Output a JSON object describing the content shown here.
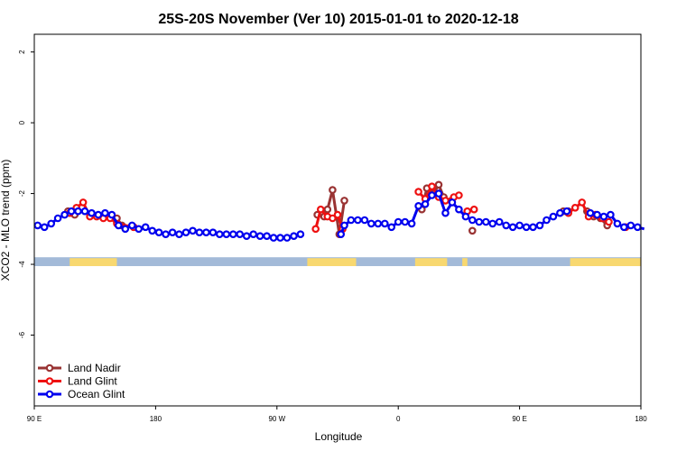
{
  "chart_data": {
    "type": "line",
    "title": "25S-20S November (Ver 10)   2015-01-01 to 2020-12-18",
    "xlabel": "Longitude",
    "ylabel": "XCO2 - MLO trend (ppm)",
    "xlim": [
      90,
      450
    ],
    "ylim": [
      -8,
      2.5
    ],
    "x_ticks": [
      {
        "value": 90,
        "label": "90 E"
      },
      {
        "value": 162,
        "label": "180"
      },
      {
        "value": 234,
        "label": "90 W"
      },
      {
        "value": 306,
        "label": "0"
      },
      {
        "value": 378,
        "label": "90 E"
      },
      {
        "value": 450,
        "label": "180"
      }
    ],
    "y_ticks": [
      {
        "value": 2,
        "label": "2"
      },
      {
        "value": 0,
        "label": "0"
      },
      {
        "value": -2,
        "label": "-2"
      },
      {
        "value": -4,
        "label": "-4"
      },
      {
        "value": -6,
        "label": "-6"
      }
    ],
    "grid": false,
    "legend_position": "bottom-left",
    "surface_band": {
      "y_top": -3.8,
      "y_bottom": -4.05,
      "ocean_color": "#a3bad8",
      "land_color": "#f8d870",
      "land_segments": [
        [
          111,
          139
        ],
        [
          252,
          281
        ],
        [
          316,
          335
        ],
        [
          344,
          347
        ],
        [
          408,
          453
        ]
      ]
    },
    "series": [
      {
        "name": "Land Nadir",
        "color": "#993333",
        "segments": [
          [
            [
              110,
              -2.5
            ],
            [
              114,
              -2.6
            ]
          ],
          [
            [
              139,
              -2.7
            ],
            [
              142,
              -2.9
            ],
            [
              149,
              -2.95
            ]
          ],
          [
            [
              258,
              -2.6
            ],
            [
              262,
              -2.65
            ],
            [
              264,
              -2.45
            ],
            [
              267,
              -1.9
            ],
            [
              271,
              -3.15
            ],
            [
              274,
              -2.2
            ]
          ],
          [
            [
              320,
              -2.45
            ],
            [
              323,
              -1.85
            ],
            [
              327,
              -2.0
            ],
            [
              330,
              -1.75
            ],
            [
              333,
              -2.1
            ]
          ],
          [
            [
              350,
              -3.05
            ]
          ],
          [
            [
              404,
              -2.5
            ],
            [
              407,
              -2.5
            ]
          ],
          [
            [
              418,
              -2.5
            ],
            [
              422,
              -2.65
            ],
            [
              426,
              -2.7
            ],
            [
              430,
              -2.9
            ]
          ]
        ]
      },
      {
        "name": "Land Glint",
        "color": "#ee1111",
        "segments": [
          [
            [
              111,
              -2.55
            ],
            [
              115,
              -2.4
            ],
            [
              119,
              -2.25
            ],
            [
              123,
              -2.65
            ],
            [
              127,
              -2.65
            ],
            [
              131,
              -2.7
            ],
            [
              135,
              -2.7
            ],
            [
              139,
              -2.85
            ],
            [
              149,
              -2.95
            ]
          ],
          [
            [
              257,
              -3.0
            ],
            [
              260,
              -2.45
            ],
            [
              264,
              -2.65
            ],
            [
              267,
              -2.7
            ],
            [
              270,
              -2.6
            ],
            [
              273,
              -3.0
            ]
          ],
          [
            [
              318,
              -1.95
            ],
            [
              322,
              -2.15
            ],
            [
              326,
              -1.8
            ],
            [
              330,
              -2.1
            ],
            [
              334,
              -2.2
            ],
            [
              339,
              -2.1
            ],
            [
              342,
              -2.05
            ]
          ],
          [
            [
              347,
              -2.5
            ]
          ],
          [
            [
              351,
              -2.45
            ]
          ],
          [
            [
              407,
              -2.55
            ],
            [
              411,
              -2.4
            ],
            [
              415,
              -2.25
            ],
            [
              419,
              -2.65
            ],
            [
              423,
              -2.6
            ],
            [
              427,
              -2.7
            ],
            [
              431,
              -2.8
            ]
          ],
          [
            [
              441,
              -2.95
            ]
          ]
        ]
      },
      {
        "name": "Ocean Glint",
        "color": "#0000ee",
        "segments": [
          [
            [
              92,
              -2.9
            ],
            [
              96,
              -2.95
            ],
            [
              100,
              -2.85
            ],
            [
              104,
              -2.7
            ],
            [
              108,
              -2.6
            ],
            [
              112,
              -2.5
            ],
            [
              116,
              -2.5
            ],
            [
              120,
              -2.5
            ],
            [
              124,
              -2.55
            ],
            [
              128,
              -2.6
            ],
            [
              132,
              -2.55
            ],
            [
              136,
              -2.6
            ],
            [
              140,
              -2.9
            ],
            [
              144,
              -3.0
            ],
            [
              148,
              -2.9
            ],
            [
              152,
              -3.0
            ],
            [
              156,
              -2.95
            ],
            [
              160,
              -3.05
            ],
            [
              164,
              -3.1
            ],
            [
              168,
              -3.15
            ],
            [
              172,
              -3.1
            ],
            [
              176,
              -3.15
            ],
            [
              180,
              -3.1
            ],
            [
              184,
              -3.05
            ],
            [
              188,
              -3.1
            ],
            [
              192,
              -3.1
            ],
            [
              196,
              -3.1
            ],
            [
              200,
              -3.15
            ],
            [
              204,
              -3.15
            ],
            [
              208,
              -3.15
            ],
            [
              212,
              -3.15
            ],
            [
              216,
              -3.2
            ],
            [
              220,
              -3.15
            ],
            [
              224,
              -3.2
            ],
            [
              228,
              -3.2
            ],
            [
              232,
              -3.25
            ],
            [
              236,
              -3.25
            ],
            [
              240,
              -3.25
            ],
            [
              244,
              -3.2
            ],
            [
              248,
              -3.15
            ]
          ],
          [
            [
              272,
              -3.15
            ],
            [
              274,
              -2.9
            ],
            [
              278,
              -2.75
            ],
            [
              282,
              -2.75
            ],
            [
              286,
              -2.75
            ],
            [
              290,
              -2.85
            ],
            [
              294,
              -2.85
            ],
            [
              298,
              -2.85
            ],
            [
              302,
              -2.95
            ],
            [
              306,
              -2.8
            ],
            [
              310,
              -2.8
            ],
            [
              314,
              -2.85
            ],
            [
              318,
              -2.35
            ],
            [
              322,
              -2.3
            ],
            [
              326,
              -2.05
            ],
            [
              330,
              -2.0
            ],
            [
              334,
              -2.55
            ],
            [
              338,
              -2.25
            ],
            [
              342,
              -2.45
            ],
            [
              346,
              -2.65
            ],
            [
              350,
              -2.75
            ],
            [
              354,
              -2.8
            ],
            [
              358,
              -2.8
            ],
            [
              362,
              -2.85
            ],
            [
              366,
              -2.8
            ],
            [
              370,
              -2.9
            ],
            [
              374,
              -2.95
            ],
            [
              378,
              -2.9
            ],
            [
              382,
              -2.95
            ],
            [
              386,
              -2.95
            ],
            [
              390,
              -2.9
            ],
            [
              394,
              -2.75
            ],
            [
              398,
              -2.65
            ],
            [
              402,
              -2.55
            ],
            [
              406,
              -2.5
            ]
          ],
          [
            [
              420,
              -2.55
            ],
            [
              424,
              -2.6
            ],
            [
              428,
              -2.65
            ],
            [
              432,
              -2.6
            ],
            [
              436,
              -2.85
            ],
            [
              440,
              -2.95
            ],
            [
              444,
              -2.9
            ],
            [
              448,
              -2.95
            ],
            [
              452,
              -3.0
            ]
          ]
        ]
      }
    ]
  }
}
